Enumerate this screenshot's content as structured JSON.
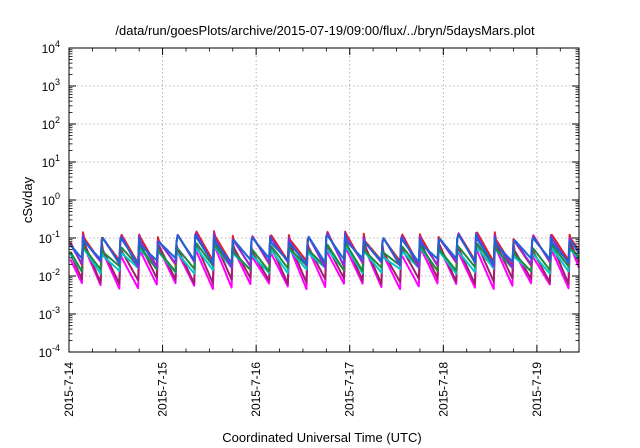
{
  "chart_data": {
    "type": "line",
    "title": "/data/run/goesPlots/archive/2015-07-19/09:00/flux/../bryn/5daysMars.plot",
    "xlabel": "Coordinated Universal Time (UTC)",
    "ylabel": "cSv/day",
    "yscale": "log",
    "ylim_exponents": [
      -4,
      4
    ],
    "y_tick_labels": [
      "10^-4",
      "10^-3",
      "10^-2",
      "10^-1",
      "10^0",
      "10^1",
      "10^2",
      "10^3",
      "10^4"
    ],
    "x_tick_labels": [
      "2015-7-14",
      "2015-7-15",
      "2015-7-16",
      "2015-7-17",
      "2015-7-18",
      "2015-7-19"
    ],
    "xlim_days": [
      0,
      5.45
    ],
    "grid": true,
    "legend": "none",
    "sawtooth_period_days": 0.2,
    "series": [
      {
        "color": "#ff00ff",
        "peak": 0.045,
        "trough": 0.0055
      },
      {
        "color": "#a0206a",
        "peak": 0.06,
        "trough": 0.0075
      },
      {
        "color": "#00c8c8",
        "peak": 0.045,
        "trough": 0.014
      },
      {
        "color": "#1e8c3c",
        "peak": 0.055,
        "trough": 0.016
      },
      {
        "color": "#e0202a",
        "peak": 0.11,
        "trough": 0.022
      },
      {
        "color": "#8a2be2",
        "peak": 0.1,
        "trough": 0.02
      },
      {
        "color": "#1e64d2",
        "peak": 0.09,
        "trough": 0.025
      }
    ]
  }
}
